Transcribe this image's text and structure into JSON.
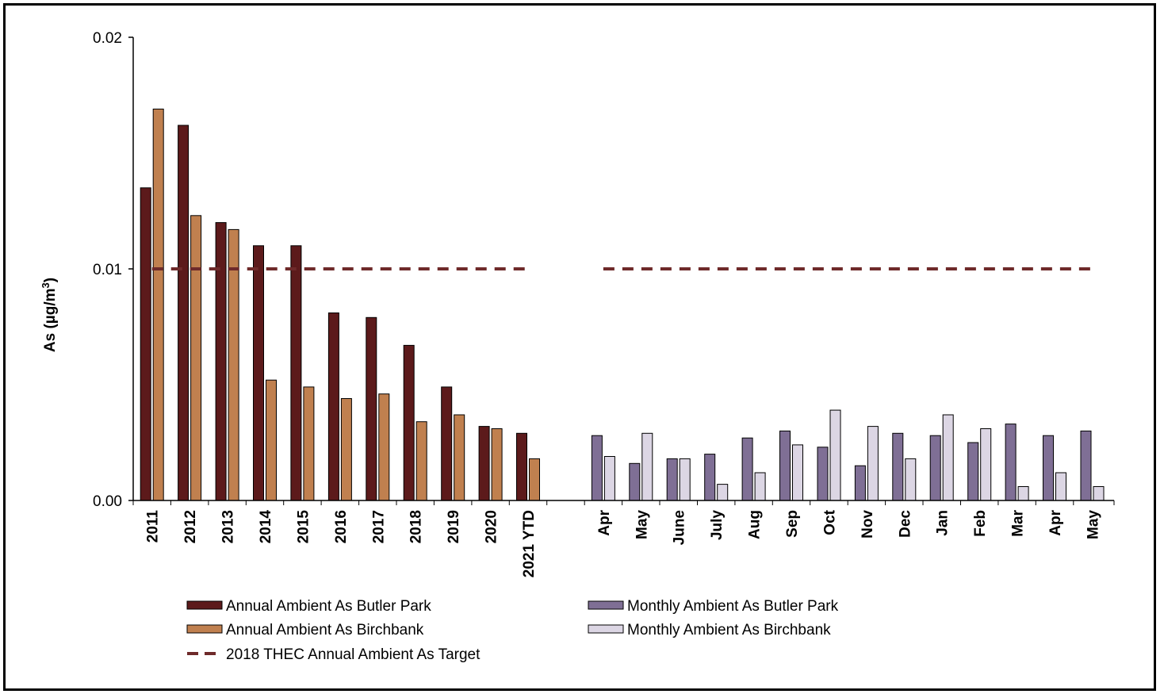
{
  "chart_data": {
    "type": "bar",
    "ylabel_main": "As  (µg/m",
    "ylabel_sup": "3",
    "ylabel_close": ")",
    "ylim": [
      0,
      0.02
    ],
    "yticks": [
      "0.00",
      "0.01",
      "0.02"
    ],
    "ytick_values": [
      0,
      0.01,
      0.02
    ],
    "grid": false,
    "legend_placement": "bottom",
    "annual": {
      "categories": [
        "2011",
        "2012",
        "2013",
        "2014",
        "2015",
        "2016",
        "2017",
        "2018",
        "2019",
        "2020",
        "2021 YTD"
      ],
      "series": [
        {
          "name": "Annual Ambient As Butler Park",
          "color": "#5c1a1b",
          "values": [
            0.0135,
            0.0162,
            0.012,
            0.011,
            0.011,
            0.0081,
            0.0079,
            0.0067,
            0.0049,
            0.0032,
            0.0029
          ]
        },
        {
          "name": "Annual Ambient As Birchbank",
          "color": "#c0804f",
          "values": [
            0.0169,
            0.0123,
            0.0117,
            0.0052,
            0.0049,
            0.0044,
            0.0046,
            0.0034,
            0.0037,
            0.0031,
            0.0018
          ]
        }
      ]
    },
    "monthly": {
      "categories": [
        "Apr",
        "May",
        "June",
        "July",
        "Aug",
        "Sep",
        "Oct",
        "Nov",
        "Dec",
        "Jan",
        "Feb",
        "Mar",
        "Apr",
        "May"
      ],
      "series": [
        {
          "name": "Monthly Ambient As Butler Park",
          "color": "#7f6f95",
          "values": [
            0.0028,
            0.0016,
            0.0018,
            0.002,
            0.0027,
            0.003,
            0.0023,
            0.0015,
            0.0029,
            0.0028,
            0.0025,
            0.0033,
            0.0028,
            0.003
          ]
        },
        {
          "name": "Monthly Ambient As Birchbank",
          "color": "#dcd6e4",
          "values": [
            0.0019,
            0.0029,
            0.0018,
            0.0007,
            0.0012,
            0.0024,
            0.0039,
            0.0032,
            0.0018,
            0.0037,
            0.0031,
            0.0006,
            0.0012,
            0.0006
          ]
        }
      ]
    },
    "target": {
      "name": "2018 THEC Annual Ambient As Target",
      "value": 0.01,
      "color": "#6e2a2a"
    }
  }
}
